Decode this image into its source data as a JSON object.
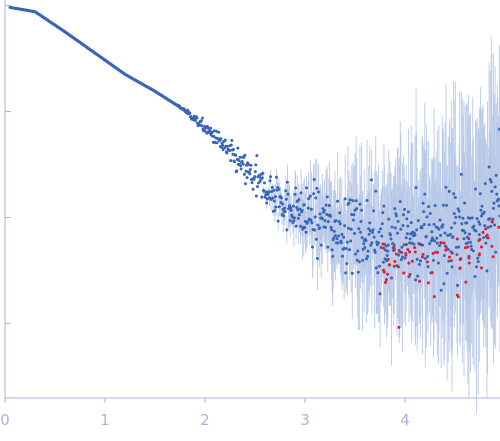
{
  "chart_data": {
    "type": "scatter",
    "title": "",
    "xlabel": "",
    "ylabel": "",
    "xlim": [
      0,
      4.95
    ],
    "ylim_log10": [
      -4.7,
      -0.95
    ],
    "y_scale": "log",
    "grid": false,
    "x_ticks": [
      {
        "value": 0,
        "label": "0"
      },
      {
        "value": 1,
        "label": "1"
      },
      {
        "value": 2,
        "label": "2"
      },
      {
        "value": 3,
        "label": "3"
      },
      {
        "value": 4,
        "label": "4"
      }
    ],
    "y_ticks_log10": [
      -1,
      -2,
      -3,
      -4
    ],
    "colors": {
      "axis": "#aab4d8",
      "tick_label": "#aab4d8",
      "point": "#3a66b8",
      "error_bar": "#b9c9e8",
      "outlier_point": "#e0202c"
    },
    "series": [
      {
        "role": "data",
        "color": "#3a66b8",
        "curve_log10": [
          [
            0.05,
            -1.02
          ],
          [
            0.3,
            -1.06
          ],
          [
            0.6,
            -1.25
          ],
          [
            0.9,
            -1.45
          ],
          [
            1.2,
            -1.65
          ],
          [
            1.5,
            -1.81
          ],
          [
            1.8,
            -1.99
          ],
          [
            2.1,
            -2.24
          ],
          [
            2.4,
            -2.55
          ],
          [
            2.7,
            -2.82
          ],
          [
            3.0,
            -2.97
          ],
          [
            3.3,
            -3.08
          ],
          [
            3.6,
            -3.15
          ],
          [
            3.9,
            -3.2
          ],
          [
            4.2,
            -3.2
          ],
          [
            4.5,
            -3.14
          ],
          [
            4.95,
            -2.95
          ]
        ]
      },
      {
        "role": "outliers",
        "color": "#e0202c",
        "x_range": [
          3.75,
          4.95
        ]
      }
    ]
  }
}
